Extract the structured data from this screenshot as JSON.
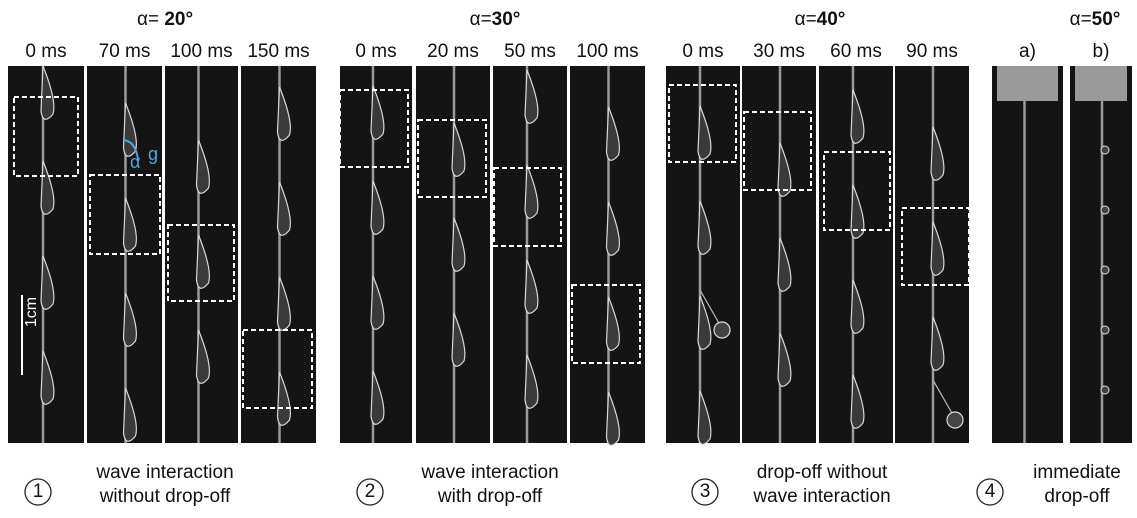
{
  "panels": [
    {
      "angle": {
        "prefix": "α= ",
        "value": "20°"
      },
      "frames": [
        "0 ms",
        "70 ms",
        "100 ms",
        "150 ms"
      ],
      "caption": {
        "number": "1",
        "lines": [
          "wave interaction",
          "without drop-off"
        ]
      }
    },
    {
      "angle": {
        "prefix": "α=",
        "value": "30°"
      },
      "frames": [
        "0 ms",
        "20 ms",
        "50 ms",
        "100 ms"
      ],
      "caption": {
        "number": "2",
        "lines": [
          "wave interaction",
          "with drop-off"
        ]
      }
    },
    {
      "angle": {
        "prefix": "α=",
        "value": "40°"
      },
      "frames": [
        "0 ms",
        "30 ms",
        "60 ms",
        "90 ms"
      ],
      "caption": {
        "number": "3",
        "lines": [
          "drop-off without",
          "wave interaction"
        ]
      }
    },
    {
      "angle": {
        "prefix": "α=",
        "value": "50°"
      },
      "frames": [
        "a)",
        "b)"
      ],
      "caption": {
        "number": "4",
        "lines": [
          "immediate",
          "drop-off"
        ]
      }
    }
  ],
  "annotations": {
    "gravity": "g",
    "angle_symbol": "α",
    "scale_bar": "1cm"
  }
}
